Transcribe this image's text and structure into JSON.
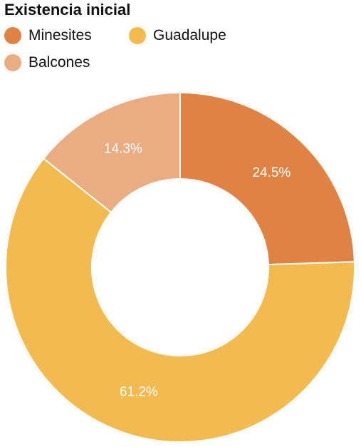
{
  "chart_data": {
    "type": "pie",
    "variant": "donut",
    "title": "Existencia inicial",
    "legend_position": "top-left",
    "start_angle_deg": 0,
    "direction": "clockwise",
    "slices": [
      {
        "label": "Minesites",
        "value": 24.5,
        "value_label": "24.5%",
        "color": "#E08244"
      },
      {
        "label": "Guadalupe",
        "value": 61.2,
        "value_label": "61.2%",
        "color": "#F3BA4F"
      },
      {
        "label": "Balcones",
        "value": 14.3,
        "value_label": "14.3%",
        "color": "#EAAC80"
      }
    ]
  }
}
